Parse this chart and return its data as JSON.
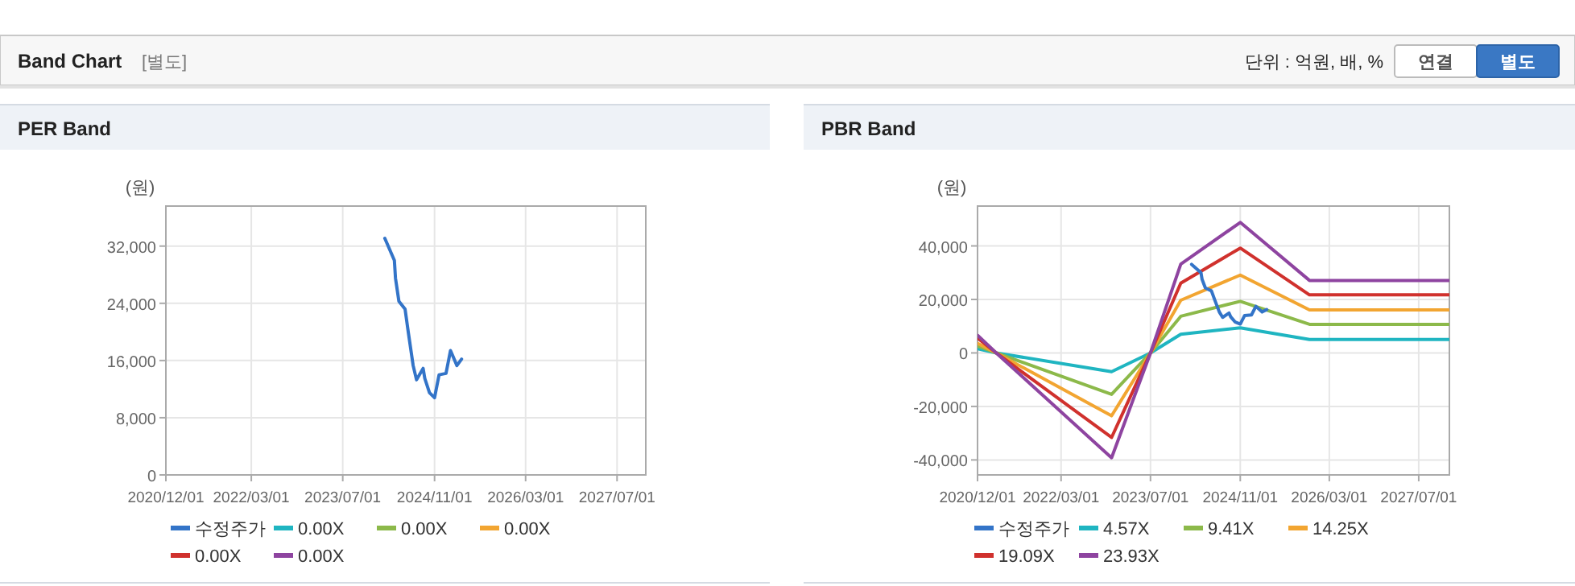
{
  "chart_data": [
    {
      "type": "other",
      "title": "Band Chart",
      "subtitle": "[별도]",
      "annotations": [
        "단위 : 억원, 배, %",
        "연결",
        "별도"
      ]
    },
    {
      "type": "line",
      "title": "PER Band",
      "ylabel": "(원)",
      "xlim": [
        "2020-12-01",
        "2027-12-01"
      ],
      "ylim": [
        0,
        37600
      ],
      "xticks": [
        {
          "value": "2020-12-01",
          "label": "2020/12/01"
        },
        {
          "value": "2022-03-01",
          "label": "2022/03/01"
        },
        {
          "value": "2023-07-01",
          "label": "2023/07/01"
        },
        {
          "value": "2024-11-01",
          "label": "2024/11/01"
        },
        {
          "value": "2026-03-01",
          "label": "2026/03/01"
        },
        {
          "value": "2027-07-01",
          "label": "2027/07/01"
        }
      ],
      "yticks": [
        {
          "value": 0,
          "label": "0"
        },
        {
          "value": 8000,
          "label": "8,000"
        },
        {
          "value": 16000,
          "label": "16,000"
        },
        {
          "value": 24000,
          "label": "24,000"
        },
        {
          "value": 32000,
          "label": "32,000"
        }
      ],
      "grid": true,
      "legend": "bottom",
      "marker": "none",
      "line_style": "solid",
      "series": [
        {
          "name": "수정주가",
          "color": "#3374c8",
          "x": [
            "2024-02-10",
            "2024-04-01",
            "2024-04-07",
            "2024-04-25",
            "2024-05-28",
            "2024-06-15",
            "2024-07-10",
            "2024-07-28",
            "2024-09-01",
            "2024-09-10",
            "2024-10-05",
            "2024-11-01",
            "2024-11-25",
            "2025-01-01",
            "2025-01-25",
            "2025-02-28",
            "2025-03-25"
          ],
          "values": [
            33100,
            30000,
            27500,
            24300,
            23200,
            19800,
            15300,
            13300,
            14900,
            13500,
            11500,
            10800,
            14000,
            14200,
            17400,
            15300,
            16200
          ]
        },
        {
          "name": "0.00X",
          "color": "#1fb5c1"
        },
        {
          "name": "0.00X",
          "color": "#8cb94a"
        },
        {
          "name": "0.00X",
          "color": "#f2a531"
        },
        {
          "name": "0.00X",
          "color": "#d0312d"
        },
        {
          "name": "0.00X",
          "color": "#8e44a0"
        }
      ]
    },
    {
      "type": "line",
      "title": "PBR Band",
      "ylabel": "(원)",
      "xlim": [
        "2020-12-01",
        "2027-12-15"
      ],
      "ylim": [
        -45600,
        54900
      ],
      "xticks": [
        {
          "value": "2020-12-01",
          "label": "2020/12/01"
        },
        {
          "value": "2022-03-01",
          "label": "2022/03/01"
        },
        {
          "value": "2023-07-01",
          "label": "2023/07/01"
        },
        {
          "value": "2024-11-01",
          "label": "2024/11/01"
        },
        {
          "value": "2026-03-01",
          "label": "2026/03/01"
        },
        {
          "value": "2027-07-01",
          "label": "2027/07/01"
        }
      ],
      "yticks": [
        {
          "value": -40000,
          "label": "-40,000"
        },
        {
          "value": -20000,
          "label": "-20,000"
        },
        {
          "value": 0,
          "label": "0"
        },
        {
          "value": 20000,
          "label": "20,000"
        },
        {
          "value": 40000,
          "label": "40,000"
        }
      ],
      "grid": true,
      "legend": "bottom",
      "marker": "none",
      "line_style": "solid",
      "series": [
        {
          "name": "수정주가",
          "color": "#3374c8",
          "x": [
            "2024-02-10",
            "2024-04-01",
            "2024-04-07",
            "2024-04-25",
            "2024-05-28",
            "2024-06-15",
            "2024-07-10",
            "2024-07-28",
            "2024-09-01",
            "2024-09-10",
            "2024-10-05",
            "2024-11-01",
            "2024-11-25",
            "2025-01-01",
            "2025-01-25",
            "2025-02-28",
            "2025-03-25"
          ],
          "values": [
            33100,
            30000,
            27500,
            24300,
            23200,
            19800,
            15300,
            13300,
            14900,
            13500,
            11500,
            10800,
            14000,
            14200,
            17400,
            15300,
            16200
          ]
        },
        {
          "name": "4.57X",
          "color": "#1fb5c1",
          "x": [
            "2020-12-01",
            "2021-03-13",
            "2022-12-01",
            "2023-07-01",
            "2023-12-13",
            "2024-11-01",
            "2025-11-13",
            "2027-12-15"
          ],
          "values": [
            1600,
            0,
            -7000,
            0,
            7000,
            9400,
            5000,
            5000
          ]
        },
        {
          "name": "9.41X",
          "color": "#8cb94a",
          "x": [
            "2020-12-01",
            "2021-03-13",
            "2022-12-01",
            "2023-07-01",
            "2023-12-13",
            "2024-11-01",
            "2025-11-13",
            "2027-12-15"
          ],
          "values": [
            2600,
            0,
            -15500,
            0,
            13700,
            19300,
            10700,
            10700
          ]
        },
        {
          "name": "14.25X",
          "color": "#f2a531",
          "x": [
            "2020-12-01",
            "2021-03-13",
            "2022-12-01",
            "2023-07-01",
            "2023-12-13",
            "2024-11-01",
            "2025-11-13",
            "2027-12-15"
          ],
          "values": [
            3600,
            0,
            -23500,
            0,
            19700,
            29100,
            16100,
            16100
          ]
        },
        {
          "name": "19.09X",
          "color": "#d0312d",
          "x": [
            "2020-12-01",
            "2021-03-13",
            "2022-12-01",
            "2023-07-01",
            "2023-12-13",
            "2024-11-01",
            "2025-11-13",
            "2027-12-15"
          ],
          "values": [
            5600,
            0,
            -31600,
            0,
            26100,
            39200,
            21700,
            21700
          ]
        },
        {
          "name": "23.93X",
          "color": "#8e44a0",
          "x": [
            "2020-12-01",
            "2021-03-13",
            "2022-12-01",
            "2023-07-01",
            "2023-12-13",
            "2024-11-01",
            "2025-11-13",
            "2027-12-15"
          ],
          "values": [
            6600,
            0,
            -39200,
            0,
            33200,
            48800,
            27100,
            27100
          ]
        }
      ]
    }
  ]
}
